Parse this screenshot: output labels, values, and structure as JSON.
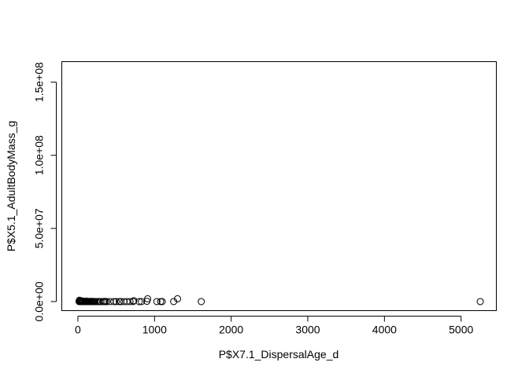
{
  "chart_data": {
    "type": "scatter",
    "title": "",
    "xlabel": "P$X7.1_DispersalAge_d",
    "ylabel": "P$X5.1_AdultBodyMass_g",
    "xlim": [
      -210,
      5460
    ],
    "ylim": [
      -6200000,
      164000000
    ],
    "xticks": [
      0,
      1000,
      2000,
      3000,
      4000,
      5000
    ],
    "xtick_labels": [
      "0",
      "1000",
      "2000",
      "3000",
      "4000",
      "5000"
    ],
    "yticks": [
      0,
      50000000,
      100000000,
      150000000
    ],
    "ytick_labels": [
      "0.0e+00",
      "5.0e+07",
      "1.0e+08",
      "1.5e+08"
    ],
    "grid": false,
    "points": [
      {
        "x": 15,
        "y": 0
      },
      {
        "x": 20,
        "y": 900000
      },
      {
        "x": 25,
        "y": 200000
      },
      {
        "x": 30,
        "y": 0
      },
      {
        "x": 35,
        "y": 600000
      },
      {
        "x": 40,
        "y": 300000
      },
      {
        "x": 45,
        "y": 0
      },
      {
        "x": 50,
        "y": 100000
      },
      {
        "x": 55,
        "y": 0
      },
      {
        "x": 60,
        "y": 400000
      },
      {
        "x": 70,
        "y": 0
      },
      {
        "x": 80,
        "y": 200000
      },
      {
        "x": 90,
        "y": 0
      },
      {
        "x": 100,
        "y": 0
      },
      {
        "x": 110,
        "y": 300000
      },
      {
        "x": 120,
        "y": 0
      },
      {
        "x": 130,
        "y": 0
      },
      {
        "x": 140,
        "y": 100000
      },
      {
        "x": 150,
        "y": 0
      },
      {
        "x": 160,
        "y": 0
      },
      {
        "x": 170,
        "y": 200000
      },
      {
        "x": 180,
        "y": 0
      },
      {
        "x": 190,
        "y": 0
      },
      {
        "x": 200,
        "y": 100000
      },
      {
        "x": 210,
        "y": 0
      },
      {
        "x": 220,
        "y": 0
      },
      {
        "x": 240,
        "y": 0
      },
      {
        "x": 260,
        "y": 0
      },
      {
        "x": 280,
        "y": 0
      },
      {
        "x": 300,
        "y": 0
      },
      {
        "x": 330,
        "y": 0
      },
      {
        "x": 345,
        "y": 100000
      },
      {
        "x": 360,
        "y": 0
      },
      {
        "x": 380,
        "y": 0
      },
      {
        "x": 420,
        "y": 0
      },
      {
        "x": 470,
        "y": 0
      },
      {
        "x": 500,
        "y": 0
      },
      {
        "x": 540,
        "y": 0
      },
      {
        "x": 560,
        "y": 0
      },
      {
        "x": 600,
        "y": 0
      },
      {
        "x": 640,
        "y": 0
      },
      {
        "x": 680,
        "y": 0
      },
      {
        "x": 720,
        "y": 0
      },
      {
        "x": 730,
        "y": 600000
      },
      {
        "x": 800,
        "y": 0
      },
      {
        "x": 830,
        "y": 0
      },
      {
        "x": 900,
        "y": 200000
      },
      {
        "x": 910,
        "y": 1900000
      },
      {
        "x": 1030,
        "y": 0
      },
      {
        "x": 1080,
        "y": 0
      },
      {
        "x": 1100,
        "y": 0
      },
      {
        "x": 1250,
        "y": 0
      },
      {
        "x": 1300,
        "y": 1900000
      },
      {
        "x": 1610,
        "y": 0
      },
      {
        "x": 5250,
        "y": 0
      }
    ]
  }
}
